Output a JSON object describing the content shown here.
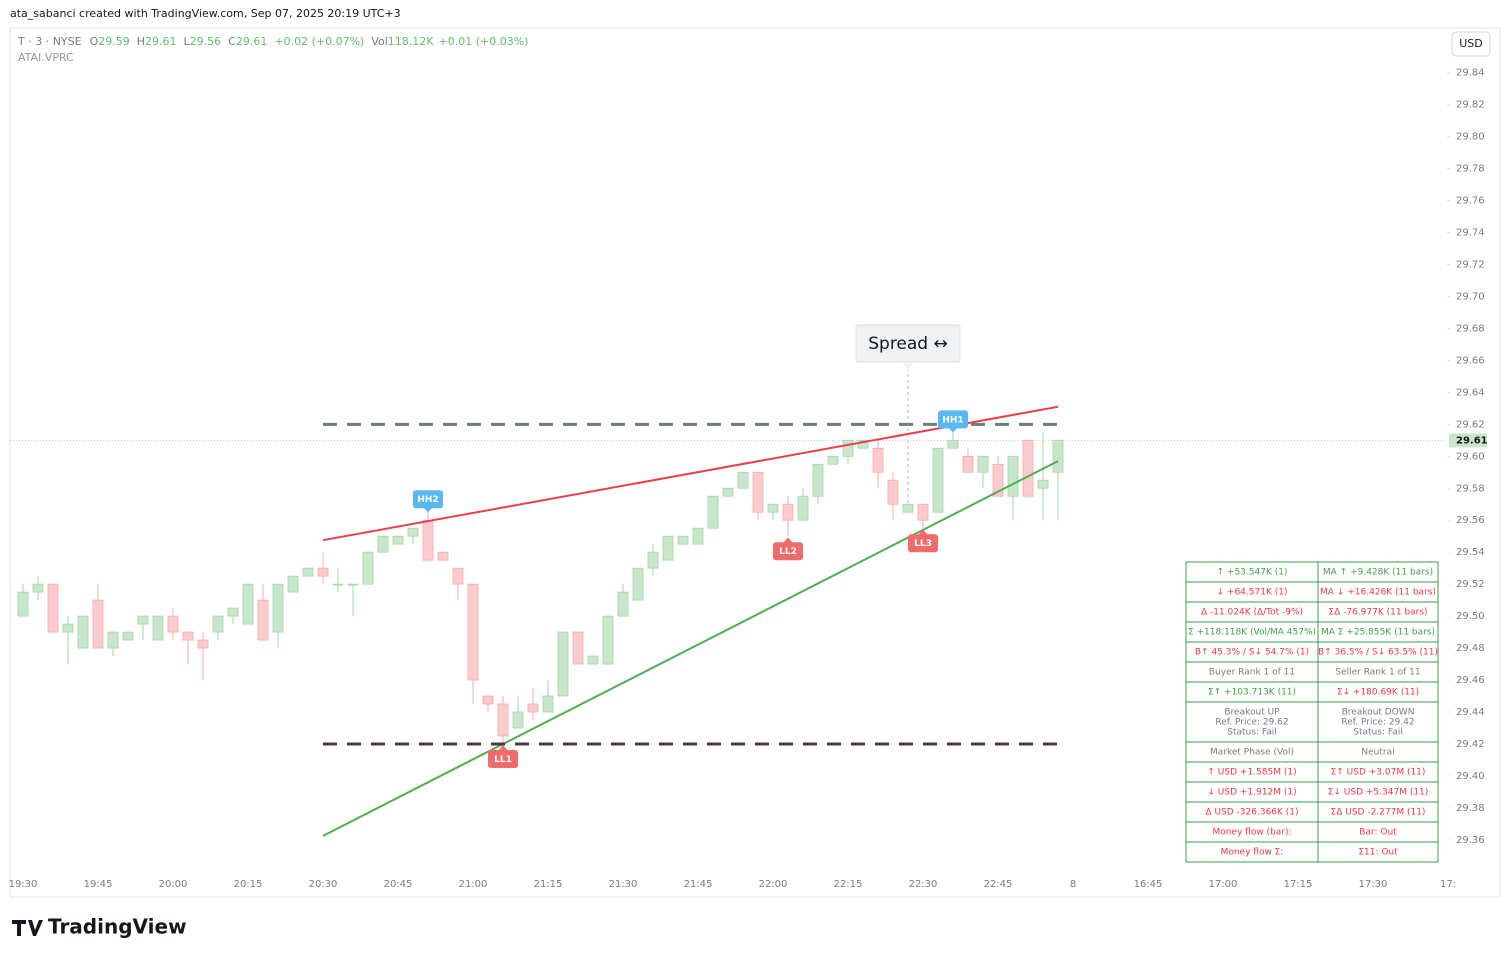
{
  "header": {
    "credit": "ata_sabanci created with TradingView.com, Sep 07, 2025 20:19 UTC+3"
  },
  "legend": {
    "symbol": "T · 3 · NYSE",
    "ohlc": [
      {
        "key": "O",
        "value": "29.59"
      },
      {
        "key": "H",
        "value": "29.61"
      },
      {
        "key": "L",
        "value": "29.56"
      },
      {
        "key": "C",
        "value": "29.61"
      }
    ],
    "change": "+0.02 (+0.07%)",
    "volume": {
      "key": "Vol",
      "value": "118.12K"
    },
    "volume_change": "+0.01 (+0.03%)",
    "indicator": "ATAI.VPRC"
  },
  "currency_button": "USD",
  "chart_data": {
    "type": "candlestick",
    "x": [
      "19:30",
      "19:33",
      "19:36",
      "19:39",
      "19:42",
      "19:45",
      "19:48",
      "19:51",
      "19:54",
      "19:57",
      "20:00",
      "20:03",
      "20:06",
      "20:09",
      "20:12",
      "20:15",
      "20:18",
      "20:21",
      "20:24",
      "20:27",
      "20:30",
      "20:33",
      "20:36",
      "20:39",
      "20:42",
      "20:45",
      "20:48",
      "20:51",
      "20:54",
      "20:57",
      "21:00",
      "21:03",
      "21:06",
      "21:09",
      "21:12",
      "21:15",
      "21:18",
      "21:21",
      "21:24",
      "21:27",
      "21:30",
      "21:33",
      "21:36",
      "21:39",
      "21:42",
      "21:45",
      "21:48",
      "21:51",
      "21:54",
      "21:57",
      "22:00",
      "22:03",
      "22:06",
      "22:09",
      "22:12",
      "22:15",
      "22:18",
      "22:21",
      "22:24",
      "22:27",
      "22:30",
      "22:33",
      "22:36",
      "22:39",
      "22:42",
      "22:45",
      "22:48",
      "22:51",
      "22:54",
      "22:57"
    ],
    "open": [
      29.5,
      29.515,
      29.52,
      29.49,
      29.48,
      29.51,
      29.48,
      29.485,
      29.495,
      29.485,
      29.5,
      29.49,
      29.485,
      29.49,
      29.5,
      29.495,
      29.51,
      29.49,
      29.515,
      29.525,
      29.53,
      29.52,
      29.52,
      29.52,
      29.54,
      29.545,
      29.55,
      29.56,
      29.54,
      29.53,
      29.52,
      29.45,
      29.445,
      29.43,
      29.445,
      29.44,
      29.45,
      29.49,
      29.47,
      29.47,
      29.5,
      29.51,
      29.53,
      29.535,
      29.545,
      29.545,
      29.555,
      29.575,
      29.58,
      29.59,
      29.565,
      29.57,
      29.56,
      29.575,
      29.595,
      29.6,
      29.605,
      29.605,
      29.585,
      29.565,
      29.57,
      29.565,
      29.605,
      29.6,
      29.59,
      29.595,
      29.575,
      29.61,
      29.58,
      29.59
    ],
    "high": [
      29.52,
      29.525,
      29.52,
      29.5,
      29.5,
      29.52,
      29.49,
      29.49,
      29.5,
      29.5,
      29.505,
      29.49,
      29.49,
      29.5,
      29.505,
      29.52,
      29.52,
      29.52,
      29.525,
      29.53,
      29.54,
      29.53,
      29.52,
      29.54,
      29.55,
      29.55,
      29.555,
      29.565,
      29.54,
      29.53,
      29.52,
      29.45,
      29.45,
      29.45,
      29.455,
      29.46,
      29.49,
      29.49,
      29.475,
      29.5,
      29.52,
      29.53,
      29.545,
      29.55,
      29.55,
      29.555,
      29.575,
      29.58,
      29.59,
      29.59,
      29.57,
      29.575,
      29.58,
      29.595,
      29.6,
      29.61,
      29.61,
      29.61,
      29.59,
      29.57,
      29.57,
      29.605,
      29.615,
      29.605,
      29.6,
      29.6,
      29.6,
      29.61,
      29.615,
      29.61
    ],
    "low": [
      29.5,
      29.51,
      29.49,
      29.47,
      29.48,
      29.48,
      29.475,
      29.485,
      29.485,
      29.485,
      29.485,
      29.47,
      29.46,
      29.485,
      29.495,
      29.495,
      29.485,
      29.48,
      29.515,
      29.525,
      29.52,
      29.515,
      29.5,
      29.52,
      29.54,
      29.545,
      29.545,
      29.535,
      29.535,
      29.51,
      29.445,
      29.44,
      29.42,
      29.43,
      29.435,
      29.44,
      29.45,
      29.47,
      29.47,
      29.47,
      29.5,
      29.51,
      29.525,
      29.535,
      29.545,
      29.545,
      29.555,
      29.575,
      29.58,
      29.56,
      29.56,
      29.55,
      29.56,
      29.57,
      29.595,
      29.595,
      29.605,
      29.58,
      29.56,
      29.565,
      29.555,
      29.565,
      29.605,
      29.59,
      29.58,
      29.575,
      29.56,
      29.575,
      29.56,
      29.56
    ],
    "close": [
      29.515,
      29.52,
      29.49,
      29.495,
      29.5,
      29.48,
      29.49,
      29.49,
      29.5,
      29.5,
      29.49,
      29.485,
      29.48,
      29.5,
      29.505,
      29.52,
      29.485,
      29.52,
      29.525,
      29.53,
      29.525,
      29.52,
      29.52,
      29.54,
      29.55,
      29.55,
      29.555,
      29.535,
      29.535,
      29.52,
      29.46,
      29.445,
      29.425,
      29.44,
      29.44,
      29.45,
      29.49,
      29.47,
      29.475,
      29.5,
      29.515,
      29.53,
      29.54,
      29.55,
      29.55,
      29.555,
      29.575,
      29.58,
      29.59,
      29.565,
      29.57,
      29.56,
      29.575,
      29.595,
      29.6,
      29.61,
      29.61,
      29.59,
      29.57,
      29.57,
      29.56,
      29.605,
      29.61,
      29.59,
      29.6,
      29.575,
      29.6,
      29.575,
      29.585,
      29.61
    ],
    "up_color": "#c8e6c9",
    "up_border": "#a5d6a7",
    "down_color": "#fccbcd",
    "down_border": "#f7a9ad",
    "ylim": [
      29.338,
      29.868
    ],
    "yticks": [
      29.36,
      29.38,
      {
        "value": 29.4,
        "label": "29.40"
      },
      29.42,
      29.44,
      29.46,
      29.48,
      {
        "value": 29.5,
        "label": "29.50"
      },
      29.52,
      29.54,
      29.56,
      29.58,
      {
        "value": 29.6,
        "label": "29.60"
      },
      29.62,
      29.64,
      29.66,
      29.68,
      {
        "value": 29.7,
        "label": "29.70"
      },
      29.72,
      29.74,
      29.76,
      29.78,
      {
        "value": 29.8,
        "label": "29.80"
      },
      29.82,
      29.84
    ],
    "xtick_labels": [
      "19:30",
      "19:45",
      "20:00",
      "20:15",
      "20:30",
      "20:45",
      "21:00",
      "21:15",
      "21:30",
      "21:45",
      "22:00",
      "22:15",
      "22:30",
      "22:45",
      "8",
      "16:45",
      "17:00",
      "17:15",
      "17:30",
      "17:"
    ],
    "grid": false,
    "last_price": 29.61,
    "last_price_color": "#c8e6c9",
    "lines": [
      {
        "x": [
          "20:30",
          "22:57"
        ],
        "values": [
          29.5475,
          29.631
        ],
        "color": "#e8414c",
        "dashed": false
      },
      {
        "x": [
          "20:30",
          "22:57"
        ],
        "values": [
          29.3625,
          29.597
        ],
        "color": "#4caf50",
        "dashed": false
      },
      {
        "x": [
          "20:30",
          "22:57"
        ],
        "values": [
          29.62,
          29.62
        ],
        "color": "#6b7f72",
        "dashed": true
      },
      {
        "x": [
          "20:30",
          "22:57"
        ],
        "values": [
          29.42,
          29.42
        ],
        "color": "#4a3a40",
        "dashed": true
      }
    ],
    "pivots": [
      {
        "label": "HH2",
        "x": "20:51",
        "value": 29.565,
        "position": "above",
        "color": "#5ab8f0"
      },
      {
        "label": "LL1",
        "x": "21:06",
        "value": 29.42,
        "position": "below",
        "color": "#f06b6b"
      },
      {
        "label": "LL2",
        "x": "22:03",
        "value": 29.55,
        "position": "below",
        "color": "#f06b6b"
      },
      {
        "label": "LL3",
        "x": "22:30",
        "value": 29.555,
        "position": "below",
        "color": "#f06b6b"
      },
      {
        "label": "HH1",
        "x": "22:36",
        "value": 29.615,
        "position": "above",
        "color": "#5ab8f0"
      }
    ],
    "annotation": {
      "text": "Spread ↔",
      "x": "22:27"
    }
  },
  "table": {
    "border": "#3d9c4c",
    "rows": [
      [
        {
          "text": "↑ +53.547K (1)",
          "color": "#43a047"
        },
        {
          "text": "MA ↑ +9.428K (11 bars)",
          "color": "#43a047"
        }
      ],
      [
        {
          "text": "↓ +64.571K (1)",
          "color": "#f23645"
        },
        {
          "text": "MA ↓ +16.426K (11 bars)",
          "color": "#f23645"
        }
      ],
      [
        {
          "text": "Δ -11.024K (Δ/Tot -9%)",
          "color": "#f23645"
        },
        {
          "text": "ΣΔ -76.977K (11 bars)",
          "color": "#f23645"
        }
      ],
      [
        {
          "text": "Σ +118.118K (Vol/MA 457%)",
          "color": "#43a047"
        },
        {
          "text": "MA Σ +25.855K (11 bars)",
          "color": "#43a047"
        }
      ],
      [
        {
          "text": "B↑ 45.3% / S↓ 54.7% (1)",
          "color": "#f23645"
        },
        {
          "text": "B↑ 36.5% / S↓ 63.5% (11)",
          "color": "#f23645"
        }
      ],
      [
        {
          "text": "Buyer Rank 1 of 11",
          "color": "#787b86"
        },
        {
          "text": "Seller Rank 1 of 11",
          "color": "#787b86"
        }
      ],
      [
        {
          "text": "Σ↑ +103.713K (11)",
          "color": "#43a047"
        },
        {
          "text": "Σ↓ +180.69K (11)",
          "color": "#f23645"
        }
      ],
      [
        {
          "lines": [
            "Breakout UP",
            "Ref. Price: 29.62",
            "Status: Fail"
          ],
          "color": "#787b86"
        },
        {
          "lines": [
            "Breakout DOWN",
            "Ref. Price: 29.42",
            "Status: Fail"
          ],
          "color": "#787b86"
        }
      ],
      [
        {
          "text": "Market Phase (Vol)",
          "color": "#787b86"
        },
        {
          "text": "Neutral",
          "color": "#787b86"
        }
      ],
      [
        {
          "text": "↑ USD +1.585M (1)",
          "color": "#f23645"
        },
        {
          "text": "Σ↑ USD +3.07M (11)",
          "color": "#f23645"
        }
      ],
      [
        {
          "text": "↓ USD +1.912M (1)",
          "color": "#f23645"
        },
        {
          "text": "Σ↓ USD +5.347M (11)",
          "color": "#f23645"
        }
      ],
      [
        {
          "text": "Δ USD -326.366K (1)",
          "color": "#f23645"
        },
        {
          "text": "ΣΔ USD -2.277M (11)",
          "color": "#f23645"
        }
      ],
      [
        {
          "text": "Money flow (bar):",
          "color": "#f23645"
        },
        {
          "text": "Bar: Out",
          "color": "#f23645"
        }
      ],
      [
        {
          "text": "Money flow Σ:",
          "color": "#f23645"
        },
        {
          "text": "Σ11: Out",
          "color": "#f23645"
        }
      ]
    ]
  },
  "footer": {
    "brand": "TradingView"
  }
}
